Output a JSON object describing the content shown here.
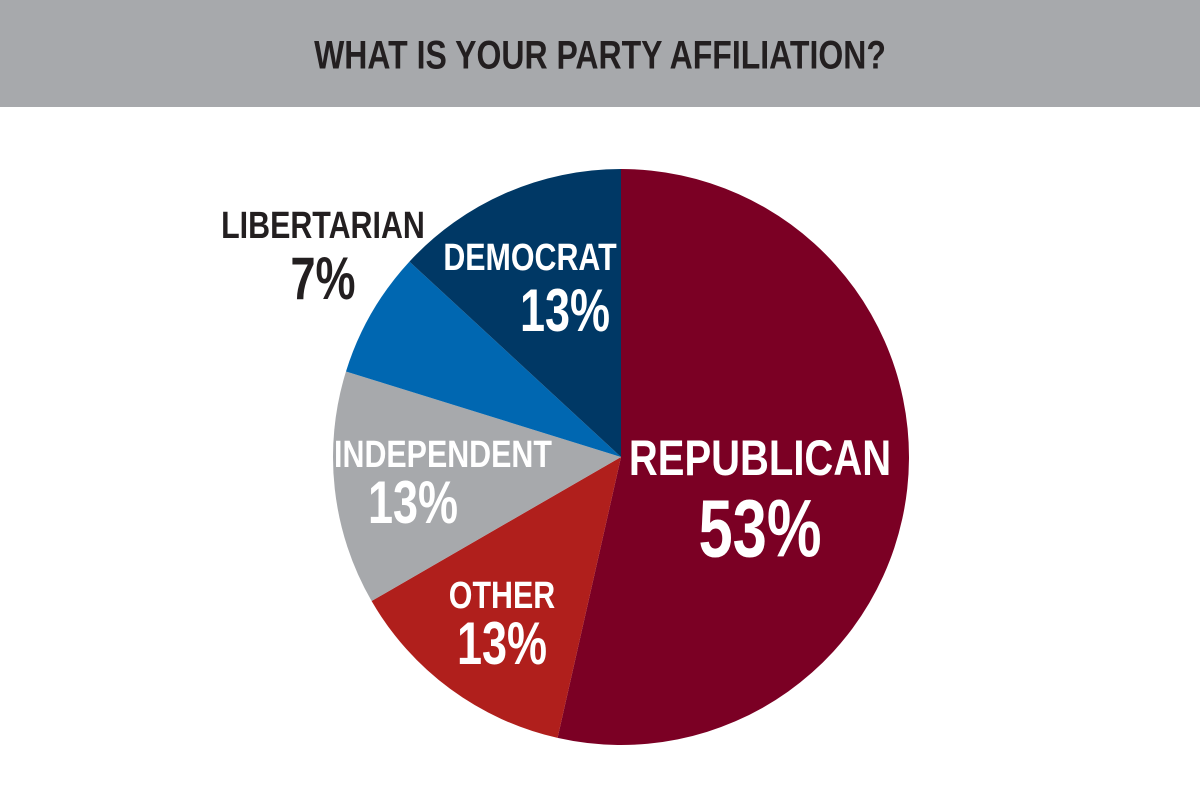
{
  "chart_data": {
    "type": "pie",
    "title": "WHAT IS YOUR PARTY AFFILIATION?",
    "categories": [
      "REPUBLICAN",
      "OTHER",
      "INDEPENDENT",
      "LIBERTARIAN",
      "DEMOCRAT"
    ],
    "values": [
      53,
      13,
      13,
      7,
      13
    ],
    "value_labels": [
      "53%",
      "13%",
      "13%",
      "7%",
      "13%"
    ],
    "colors": [
      "#7b0024",
      "#b01f1c",
      "#a7a9ac",
      "#0067b1",
      "#003865"
    ]
  }
}
